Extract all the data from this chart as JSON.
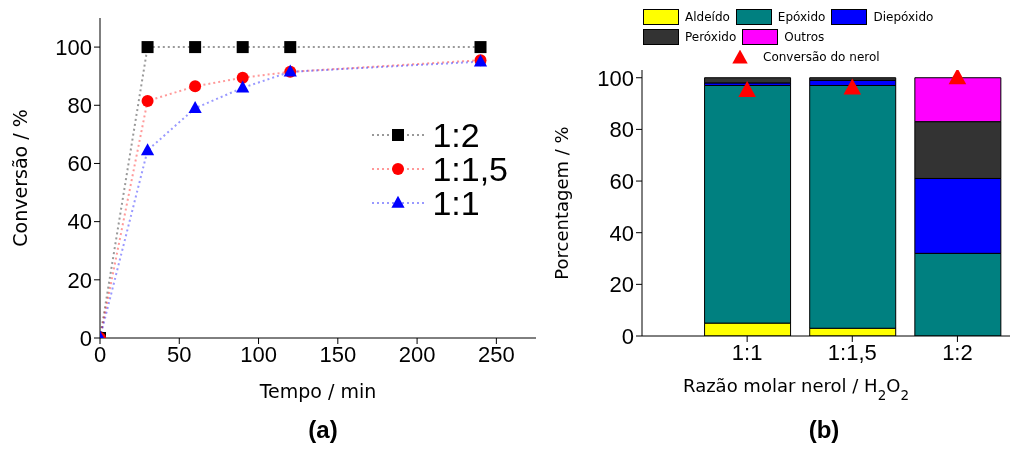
{
  "chart_data": [
    {
      "type": "line",
      "xlabel": "Tempo / min",
      "ylabel": "Conversão / %",
      "xlim": [
        0,
        275
      ],
      "xticks": [
        0,
        50,
        100,
        150,
        200,
        250
      ],
      "ylim": [
        0,
        110
      ],
      "yticks": [
        0,
        20,
        40,
        60,
        80,
        100
      ],
      "legend": "right",
      "line_style": "dotted",
      "annotations": [
        "(a)"
      ],
      "series": [
        {
          "name": "1:2",
          "color": "#000000",
          "marker": "square",
          "x": [
            0,
            30,
            60,
            90,
            120,
            240
          ],
          "values": [
            0,
            100,
            100,
            100,
            100,
            100
          ]
        },
        {
          "name": "1:1,5",
          "color": "#ff0000",
          "marker": "circle",
          "x": [
            0,
            30,
            60,
            90,
            120,
            240
          ],
          "values": [
            0,
            81.5,
            86.5,
            89.5,
            91.5,
            95.5
          ]
        },
        {
          "name": "1:1",
          "color": "#0000ff",
          "marker": "triangle",
          "x": [
            0,
            30,
            60,
            90,
            120,
            240
          ],
          "values": [
            0,
            64.5,
            79,
            86,
            91.5,
            95
          ]
        }
      ]
    },
    {
      "type": "bar",
      "stacked": true,
      "xlabel": "Razão molar nerol / H$_{2}$O$_{2}$",
      "ylabel": "Porcentagem / %",
      "categories": [
        "1:1",
        "1:1,5",
        "1:2"
      ],
      "ylim": [
        0,
        103
      ],
      "yticks": [
        0,
        20,
        40,
        60,
        80,
        100
      ],
      "legend": "top",
      "annotations": [
        "(b)"
      ],
      "series": [
        {
          "name": "Aldeído",
          "color": "#ffff00",
          "values": [
            5,
            3,
            0
          ]
        },
        {
          "name": "Epóxido",
          "color": "#008080",
          "values": [
            92,
            94,
            32
          ]
        },
        {
          "name": "Diepóxido",
          "color": "#0000ff",
          "values": [
            1,
            2,
            29
          ]
        },
        {
          "name": "Peróxido",
          "color": "#333333",
          "values": [
            2,
            1,
            22
          ]
        },
        {
          "name": "Outros",
          "color": "#ff00ff",
          "values": [
            0,
            0,
            17
          ]
        },
        {
          "name": "Conversão do nerol",
          "type": "scatter",
          "marker": "triangle",
          "color": "#ff0000",
          "x": [
            "1:1",
            "1:1,5",
            "1:2"
          ],
          "values": [
            95,
            96,
            100
          ]
        }
      ]
    }
  ]
}
